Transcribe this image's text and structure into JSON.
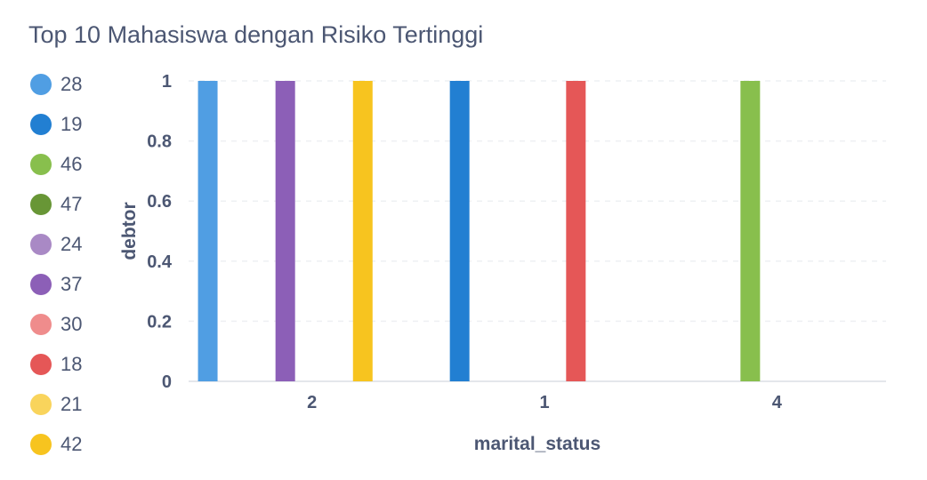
{
  "chart_data": {
    "type": "bar",
    "title": "Top 10 Mahasiswa dengan Risiko Tertinggi",
    "xlabel": "marital_status",
    "ylabel": "debtor",
    "categories": [
      "2",
      "1",
      "4"
    ],
    "ylim": [
      0,
      1
    ],
    "yticks": [
      "0",
      "0.2",
      "0.4",
      "0.6",
      "0.8",
      "1"
    ],
    "grid": true,
    "legend_position": "left",
    "series": [
      {
        "name": "28",
        "color": "#509ee3",
        "values": [
          1,
          null,
          null
        ]
      },
      {
        "name": "19",
        "color": "#227fd2",
        "values": [
          null,
          1,
          null
        ]
      },
      {
        "name": "46",
        "color": "#88bf4d",
        "values": [
          null,
          null,
          1
        ]
      },
      {
        "name": "47",
        "color": "#689636",
        "values": [
          null,
          null,
          null
        ]
      },
      {
        "name": "24",
        "color": "#a989c5",
        "values": [
          null,
          null,
          null
        ]
      },
      {
        "name": "37",
        "color": "#8c5fb7",
        "values": [
          1,
          null,
          null
        ]
      },
      {
        "name": "30",
        "color": "#ef8c8c",
        "values": [
          null,
          null,
          null
        ]
      },
      {
        "name": "18",
        "color": "#e55757",
        "values": [
          null,
          1,
          null
        ]
      },
      {
        "name": "21",
        "color": "#f9d45c",
        "values": [
          null,
          null,
          null
        ]
      },
      {
        "name": "42",
        "color": "#f7c41f",
        "values": [
          1,
          null,
          null
        ]
      }
    ]
  }
}
